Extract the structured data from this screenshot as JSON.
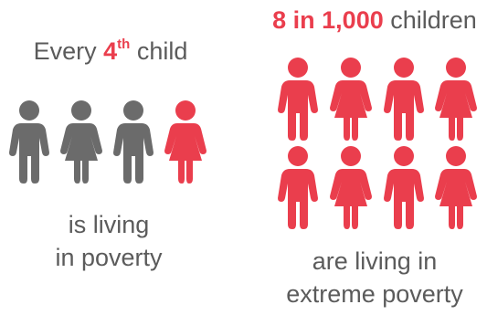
{
  "colors": {
    "accent": "#ea3e4d",
    "neutral": "#6b6b6b",
    "text": "#5b5b5b"
  },
  "left_panel": {
    "heading_prefix": "Every",
    "heading_highlight": "4",
    "heading_superscript": "th",
    "heading_suffix": "child",
    "caption_line1": "is living",
    "caption_line2": "in poverty",
    "figures": [
      {
        "icon": "boy-figure-icon",
        "color": "gray"
      },
      {
        "icon": "girl-figure-icon",
        "color": "gray"
      },
      {
        "icon": "boy-figure-icon",
        "color": "gray"
      },
      {
        "icon": "girl-figure-icon",
        "color": "red"
      }
    ]
  },
  "right_panel": {
    "heading_highlight": "8 in 1,000",
    "heading_suffix": "children",
    "caption_line1": "are living in",
    "caption_line2": "extreme poverty",
    "figures": [
      {
        "icon": "boy-figure-icon",
        "color": "red"
      },
      {
        "icon": "girl-figure-icon",
        "color": "red"
      },
      {
        "icon": "boy-figure-icon",
        "color": "red"
      },
      {
        "icon": "girl-figure-icon",
        "color": "red"
      },
      {
        "icon": "boy-figure-icon",
        "color": "red"
      },
      {
        "icon": "girl-figure-icon",
        "color": "red"
      },
      {
        "icon": "boy-figure-icon",
        "color": "red"
      },
      {
        "icon": "girl-figure-icon",
        "color": "red"
      }
    ]
  }
}
